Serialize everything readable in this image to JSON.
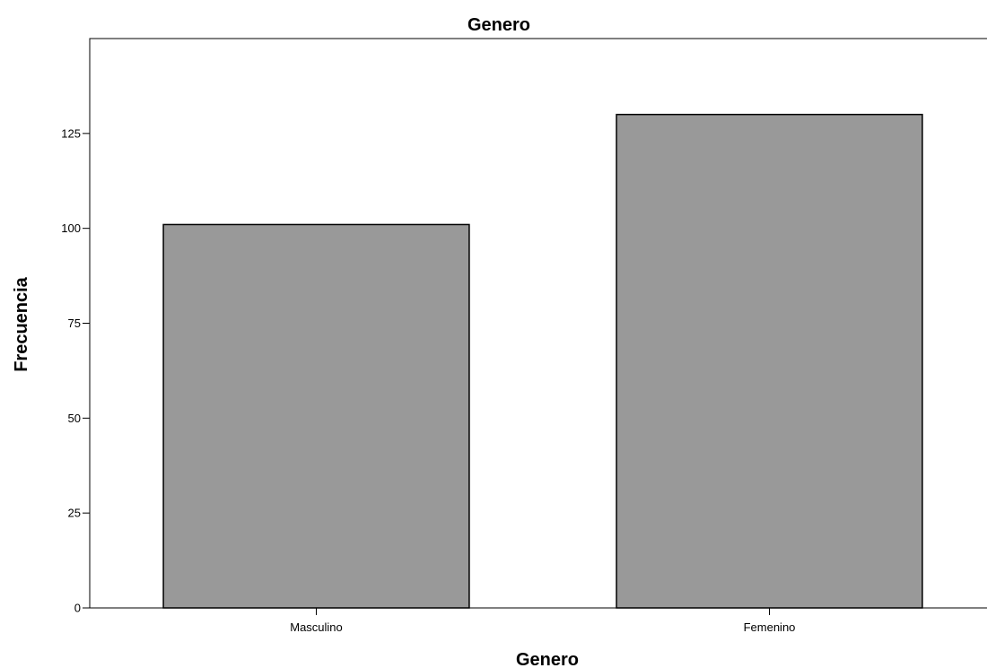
{
  "chart_data": {
    "type": "bar",
    "title": "Genero",
    "xlabel": "Genero",
    "ylabel": "Frecuencia",
    "categories": [
      "Masculino",
      "Femenino"
    ],
    "values": [
      101,
      130
    ],
    "ylim": [
      0,
      150
    ],
    "yticks": [
      0,
      25,
      50,
      75,
      100,
      125
    ],
    "grid": false,
    "legend": "none",
    "bar_color": "#999999",
    "bar_edge_color": "#000000"
  }
}
